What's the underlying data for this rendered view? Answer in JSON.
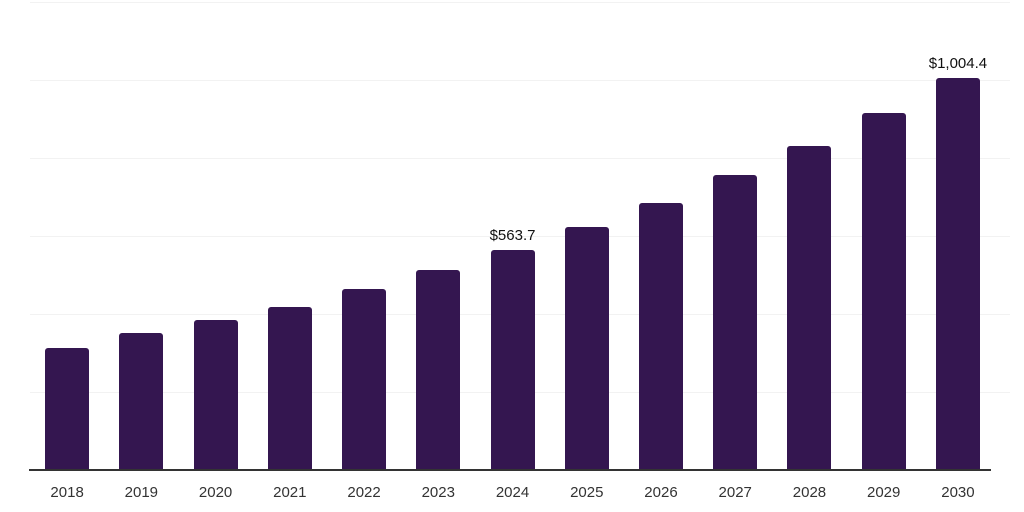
{
  "chart": {
    "background_color": "#ffffff",
    "bar_color": "#341650",
    "grid_color": "#f2f2f2",
    "axis_line_color": "#333333",
    "tick_label_color": "#333333",
    "data_label_color": "#111111"
  },
  "chart_data": {
    "type": "bar",
    "title": "",
    "xlabel": "",
    "ylabel": "",
    "categories": [
      "2018",
      "2019",
      "2020",
      "2021",
      "2022",
      "2023",
      "2024",
      "2025",
      "2026",
      "2027",
      "2028",
      "2029",
      "2030"
    ],
    "values": [
      312,
      351,
      385,
      418,
      465,
      513,
      563.7,
      623,
      685,
      756,
      831,
      915,
      1004.4
    ],
    "data_labels": [
      "",
      "",
      "",
      "",
      "",
      "",
      "$563.7",
      "",
      "",
      "",
      "",
      "",
      "$1,004.4"
    ],
    "ylim": [
      0,
      1200
    ],
    "grid_step": 200,
    "grid": "horizontal-only",
    "y_axis_labels_visible": false,
    "legend_position": "none"
  }
}
